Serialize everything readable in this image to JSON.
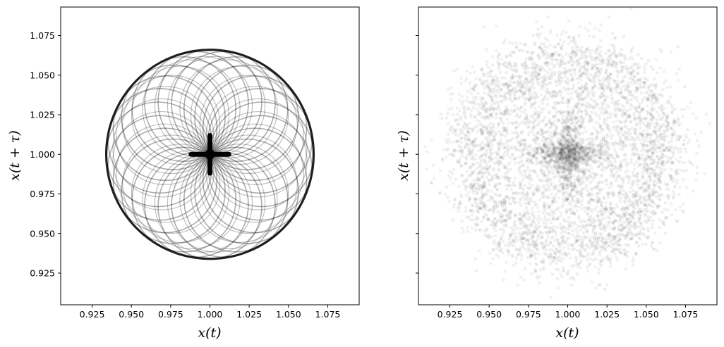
{
  "chart_data": [
    {
      "type": "scatter",
      "style": "phase-portrait-rose",
      "xlabel": "x(t)",
      "ylabel": "x(t + τ)",
      "xlim": [
        0.905,
        1.095
      ],
      "ylim": [
        0.905,
        1.093
      ],
      "xticks": [
        0.925,
        0.95,
        0.975,
        1.0,
        1.025,
        1.05,
        1.075
      ],
      "yticks": [
        0.925,
        0.95,
        0.975,
        1.0,
        1.025,
        1.05,
        1.075
      ],
      "xtick_labels": [
        "0.925",
        "0.950",
        "0.975",
        "1.000",
        "1.025",
        "1.050",
        "1.075"
      ],
      "ytick_labels": [
        "0.925",
        "0.950",
        "0.975",
        "1.000",
        "1.025",
        "1.050",
        "1.075"
      ],
      "center": [
        1.0,
        1.0
      ],
      "radius": 0.066,
      "petals": 24,
      "point_color": "#000000"
    },
    {
      "type": "scatter",
      "style": "phase-portrait-noisy",
      "xlabel": "x(t)",
      "ylabel": "x(t + τ)",
      "xlim": [
        0.905,
        1.095
      ],
      "ylim": [
        0.905,
        1.093
      ],
      "xticks": [
        0.925,
        0.95,
        0.975,
        1.0,
        1.025,
        1.05,
        1.075
      ],
      "yticks": [
        0.925,
        0.95,
        0.975,
        1.0,
        1.025,
        1.05,
        1.075
      ],
      "xtick_labels": [
        "0.925",
        "0.950",
        "0.975",
        "1.000",
        "1.025",
        "1.050",
        "1.075"
      ],
      "ytick_labels": [],
      "center": [
        1.0,
        1.0
      ],
      "radius": 0.066,
      "noise": 0.012,
      "point_color": "#000000"
    }
  ]
}
